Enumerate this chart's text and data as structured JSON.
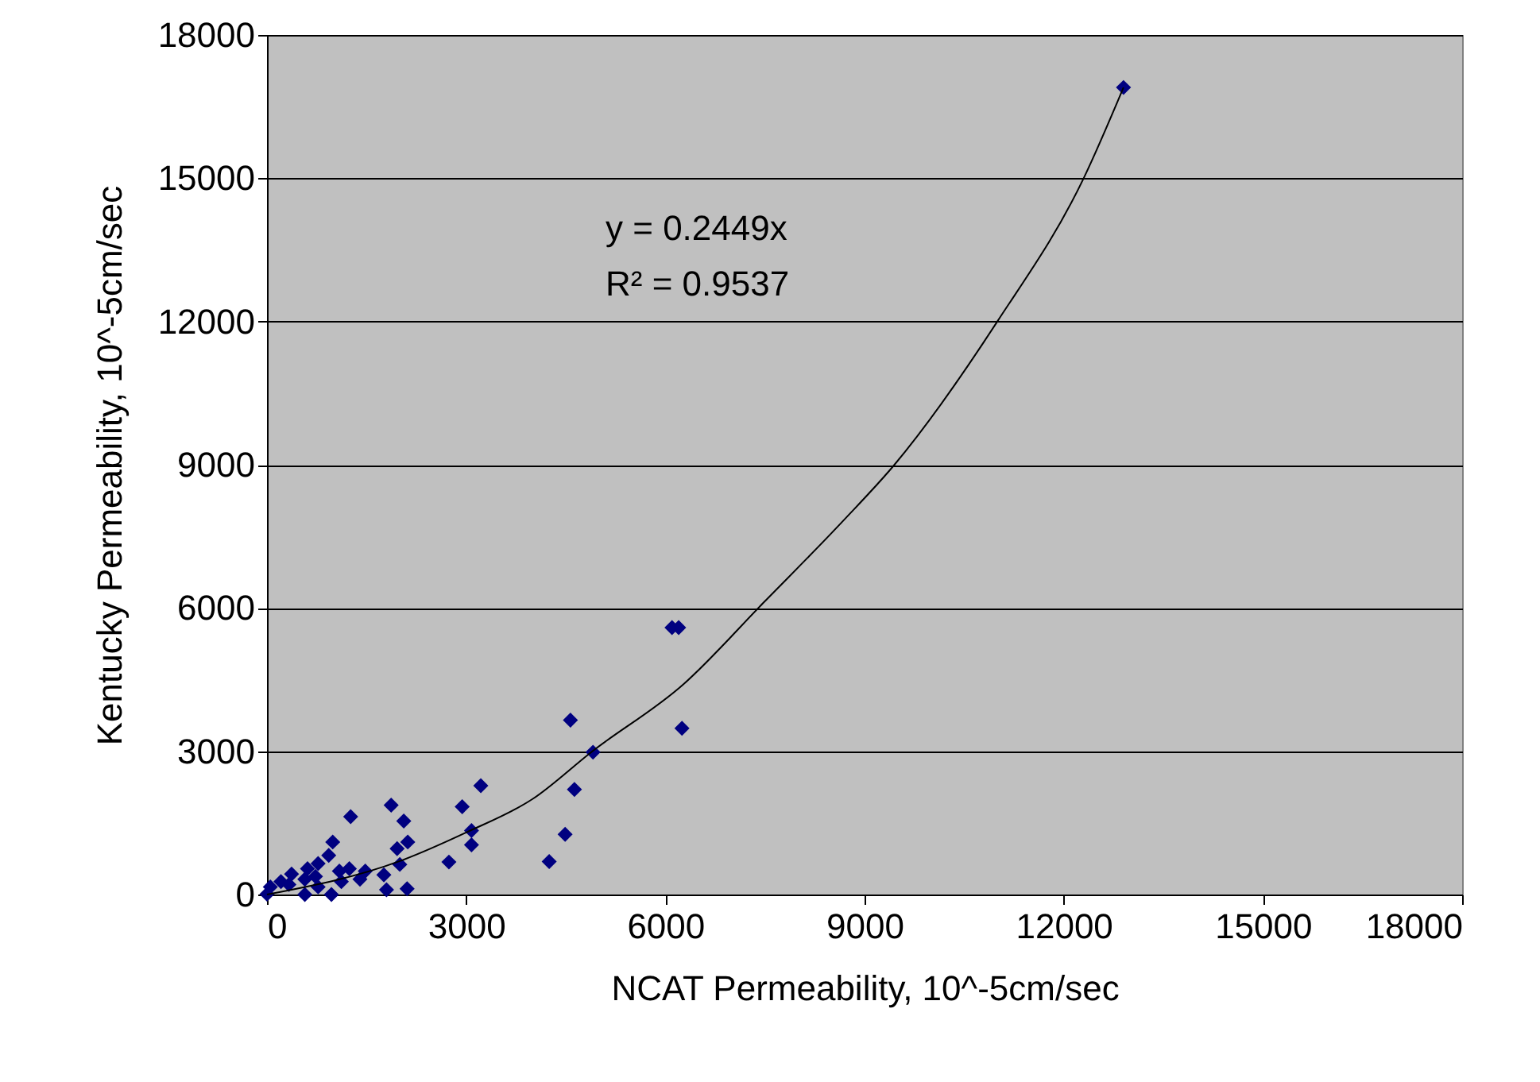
{
  "chart_data": {
    "type": "scatter",
    "xlabel": "NCAT Permeability, 10^-5cm/sec",
    "ylabel": "Kentucky  Permeability, 10^-5cm/sec",
    "xlim": [
      0,
      18000
    ],
    "ylim": [
      0,
      18000
    ],
    "xticks": [
      0,
      3000,
      6000,
      9000,
      12000,
      15000,
      18000
    ],
    "yticks": [
      0,
      3000,
      6000,
      9000,
      12000,
      15000,
      18000
    ],
    "grid": "y",
    "marker": "diamond",
    "annotations": [
      "y = 0.2449x",
      "R² = 0.9537"
    ],
    "series": [
      {
        "color": "#000080",
        "x": [
          12900,
          6100,
          6200,
          6250,
          4570,
          4910,
          4630,
          4490,
          4250,
          3220,
          2940,
          3080,
          3080,
          2740,
          1870,
          2060,
          1260,
          2120,
          1960,
          2000,
          2110,
          1800,
          1760,
          1480,
          1400,
          990,
          930,
          770,
          1090,
          1120,
          970,
          610,
          570,
          370,
          330,
          130,
          0,
          570,
          770,
          50,
          1240,
          210,
          730
        ],
        "values": [
          16900,
          5590,
          5590,
          3480,
          3650,
          2980,
          2200,
          1260,
          690,
          2280,
          1840,
          1340,
          1040,
          680,
          1870,
          1540,
          1630,
          1100,
          960,
          630,
          120,
          100,
          410,
          490,
          320,
          1100,
          820,
          650,
          490,
          270,
          0,
          540,
          320,
          430,
          210,
          null,
          10,
          0,
          160,
          160,
          540,
          270,
          380
        ]
      },
      {
        "type": "line",
        "color": "#000000",
        "line_style": "solid",
        "marker": "none",
        "x": [
          0,
          2000,
          3000,
          4000,
          4900,
          6270,
          7470,
          8660,
          9450,
          11000,
          12300,
          12900
        ],
        "values": [
          0,
          700,
          1300,
          2000,
          3000,
          4400,
          6100,
          7800,
          9000,
          12000,
          15000,
          16900
        ]
      }
    ]
  }
}
